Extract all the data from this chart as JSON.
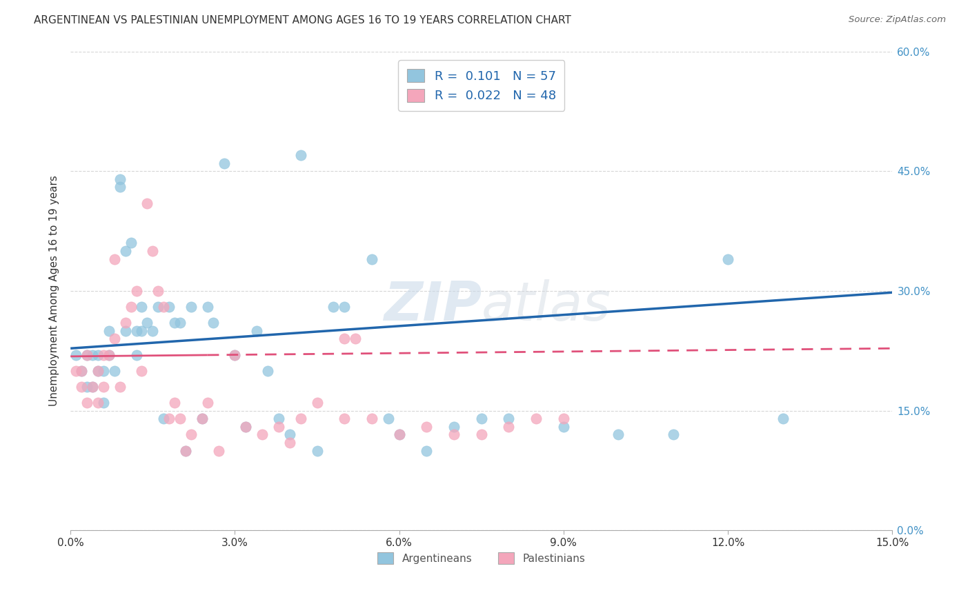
{
  "title": "ARGENTINEAN VS PALESTINIAN UNEMPLOYMENT AMONG AGES 16 TO 19 YEARS CORRELATION CHART",
  "source": "Source: ZipAtlas.com",
  "ylabel": "Unemployment Among Ages 16 to 19 years",
  "xlim": [
    0.0,
    0.15
  ],
  "ylim": [
    0.0,
    0.6
  ],
  "xticks": [
    0.0,
    0.03,
    0.06,
    0.09,
    0.12,
    0.15
  ],
  "yticks": [
    0.0,
    0.15,
    0.3,
    0.45,
    0.6
  ],
  "blue_color": "#92C5DE",
  "pink_color": "#F4A6BB",
  "blue_line_color": "#2166AC",
  "pink_line_color": "#E0507A",
  "right_axis_color": "#4292c6",
  "R_argentinean": 0.101,
  "N_argentinean": 57,
  "R_palestinian": 0.022,
  "N_palestinian": 48,
  "blue_trend_x0": 0.0,
  "blue_trend_y0": 0.228,
  "blue_trend_x1": 0.15,
  "blue_trend_y1": 0.298,
  "pink_trend_x0": 0.0,
  "pink_trend_y0": 0.218,
  "pink_trend_x1": 0.15,
  "pink_trend_y1": 0.228,
  "argentinean_x": [
    0.001,
    0.002,
    0.003,
    0.003,
    0.004,
    0.004,
    0.005,
    0.005,
    0.006,
    0.006,
    0.007,
    0.007,
    0.008,
    0.009,
    0.009,
    0.01,
    0.01,
    0.011,
    0.012,
    0.012,
    0.013,
    0.013,
    0.014,
    0.015,
    0.016,
    0.017,
    0.018,
    0.019,
    0.02,
    0.021,
    0.022,
    0.024,
    0.025,
    0.026,
    0.028,
    0.03,
    0.032,
    0.034,
    0.036,
    0.038,
    0.04,
    0.042,
    0.045,
    0.048,
    0.05,
    0.055,
    0.058,
    0.06,
    0.065,
    0.07,
    0.075,
    0.08,
    0.09,
    0.1,
    0.11,
    0.12,
    0.13
  ],
  "argentinean_y": [
    0.22,
    0.2,
    0.22,
    0.18,
    0.22,
    0.18,
    0.22,
    0.2,
    0.16,
    0.2,
    0.25,
    0.22,
    0.2,
    0.44,
    0.43,
    0.35,
    0.25,
    0.36,
    0.25,
    0.22,
    0.25,
    0.28,
    0.26,
    0.25,
    0.28,
    0.14,
    0.28,
    0.26,
    0.26,
    0.1,
    0.28,
    0.14,
    0.28,
    0.26,
    0.46,
    0.22,
    0.13,
    0.25,
    0.2,
    0.14,
    0.12,
    0.47,
    0.1,
    0.28,
    0.28,
    0.34,
    0.14,
    0.12,
    0.1,
    0.13,
    0.14,
    0.14,
    0.13,
    0.12,
    0.12,
    0.34,
    0.14
  ],
  "palestinian_x": [
    0.001,
    0.002,
    0.002,
    0.003,
    0.003,
    0.004,
    0.005,
    0.005,
    0.006,
    0.006,
    0.007,
    0.008,
    0.008,
    0.009,
    0.01,
    0.011,
    0.012,
    0.013,
    0.014,
    0.015,
    0.016,
    0.017,
    0.018,
    0.019,
    0.02,
    0.021,
    0.022,
    0.024,
    0.025,
    0.027,
    0.03,
    0.032,
    0.035,
    0.038,
    0.04,
    0.042,
    0.045,
    0.05,
    0.052,
    0.055,
    0.06,
    0.065,
    0.07,
    0.075,
    0.08,
    0.085,
    0.09,
    0.05
  ],
  "palestinian_y": [
    0.2,
    0.18,
    0.2,
    0.16,
    0.22,
    0.18,
    0.2,
    0.16,
    0.18,
    0.22,
    0.22,
    0.24,
    0.34,
    0.18,
    0.26,
    0.28,
    0.3,
    0.2,
    0.41,
    0.35,
    0.3,
    0.28,
    0.14,
    0.16,
    0.14,
    0.1,
    0.12,
    0.14,
    0.16,
    0.1,
    0.22,
    0.13,
    0.12,
    0.13,
    0.11,
    0.14,
    0.16,
    0.14,
    0.24,
    0.14,
    0.12,
    0.13,
    0.12,
    0.12,
    0.13,
    0.14,
    0.14,
    0.24
  ]
}
